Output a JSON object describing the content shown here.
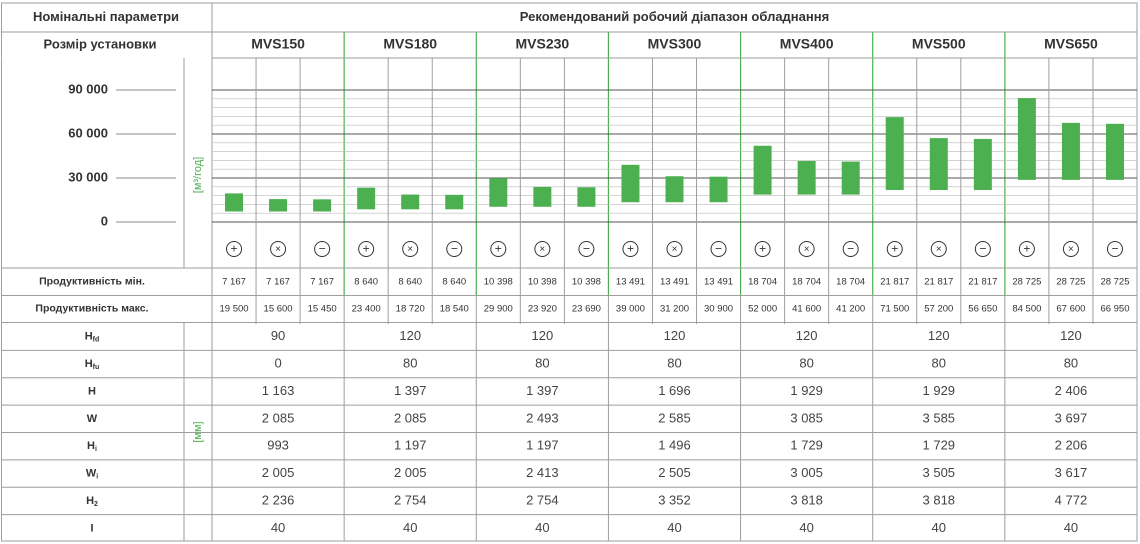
{
  "header": {
    "left_title": "Номінальні параметри",
    "right_title": "Рекомендований робочий діапазон обладнання",
    "size_label": "Розмір установки"
  },
  "units": {
    "flow": "[м³/год]",
    "dims": "[мм]"
  },
  "models": [
    "MVS150",
    "MVS180",
    "MVS230",
    "MVS300",
    "MVS400",
    "MVS500",
    "MVS650"
  ],
  "mode_icons": [
    "plus-icon",
    "cross-icon",
    "minus-icon"
  ],
  "colors": {
    "bar": "#4caf50",
    "unit_label": "#4caf50",
    "grid": "#444444",
    "border": "#9e9e9e"
  },
  "chart_data": {
    "type": "bar",
    "floating": true,
    "ylabel": "[м³/год]",
    "ylim": [
      0,
      100000
    ],
    "yticks": [
      0,
      30000,
      60000,
      90000
    ],
    "ytick_labels": [
      "0",
      "30 000",
      "60 000",
      "90 000"
    ],
    "grid": true,
    "categories": [
      "MVS150 +",
      "MVS150 ×",
      "MVS150 −",
      "MVS180 +",
      "MVS180 ×",
      "MVS180 −",
      "MVS230 +",
      "MVS230 ×",
      "MVS230 −",
      "MVS300 +",
      "MVS300 ×",
      "MVS300 −",
      "MVS400 +",
      "MVS400 ×",
      "MVS400 −",
      "MVS500 +",
      "MVS500 ×",
      "MVS500 −",
      "MVS650 +",
      "MVS650 ×",
      "MVS650 −"
    ],
    "series": [
      {
        "min": [
          7167,
          7167,
          7167,
          8640,
          8640,
          8640,
          10398,
          10398,
          10398,
          13491,
          13491,
          13491,
          18704,
          18704,
          18704,
          21817,
          21817,
          21817,
          28725,
          28725,
          28725
        ],
        "max": [
          19500,
          15600,
          15450,
          23400,
          18720,
          18540,
          29900,
          23920,
          23690,
          39000,
          31200,
          30900,
          52000,
          41600,
          41200,
          71500,
          57200,
          56650,
          84500,
          67600,
          66950
        ]
      }
    ]
  },
  "perf_rows": [
    {
      "label": "Продуктивність мін.",
      "values": [
        "7 167",
        "7 167",
        "7 167",
        "8 640",
        "8 640",
        "8 640",
        "10 398",
        "10 398",
        "10 398",
        "13 491",
        "13 491",
        "13 491",
        "18 704",
        "18 704",
        "18 704",
        "21 817",
        "21 817",
        "21 817",
        "28 725",
        "28 725",
        "28 725"
      ]
    },
    {
      "label": "Продуктивність макс.",
      "values": [
        "19 500",
        "15 600",
        "15 450",
        "23 400",
        "18 720",
        "18 540",
        "29 900",
        "23 920",
        "23 690",
        "39 000",
        "31 200",
        "30 900",
        "52 000",
        "41 600",
        "41 200",
        "71 500",
        "57 200",
        "56 650",
        "84 500",
        "67 600",
        "66 950"
      ]
    }
  ],
  "dim_rows": [
    {
      "main": "H",
      "sub": "fd",
      "values": [
        "90",
        "120",
        "120",
        "120",
        "120",
        "120",
        "120"
      ]
    },
    {
      "main": "H",
      "sub": "fu",
      "values": [
        "0",
        "80",
        "80",
        "80",
        "80",
        "80",
        "80"
      ]
    },
    {
      "main": "H",
      "sub": "",
      "values": [
        "1 163",
        "1 397",
        "1 397",
        "1 696",
        "1 929",
        "1 929",
        "2 406"
      ]
    },
    {
      "main": "W",
      "sub": "",
      "values": [
        "2 085",
        "2 085",
        "2 493",
        "2 585",
        "3 085",
        "3 585",
        "3 697"
      ]
    },
    {
      "main": "H",
      "sub": "i",
      "values": [
        "993",
        "1 197",
        "1 197",
        "1 496",
        "1 729",
        "1 729",
        "2 206"
      ]
    },
    {
      "main": "W",
      "sub": "i",
      "values": [
        "2 005",
        "2 005",
        "2 413",
        "2 505",
        "3 005",
        "3 505",
        "3 617"
      ]
    },
    {
      "main": "H",
      "sub": "2",
      "values": [
        "2 236",
        "2 754",
        "2 754",
        "3 352",
        "3 818",
        "3 818",
        "4 772"
      ]
    },
    {
      "main": "I",
      "sub": "",
      "values": [
        "40",
        "40",
        "40",
        "40",
        "40",
        "40",
        "40"
      ]
    }
  ]
}
